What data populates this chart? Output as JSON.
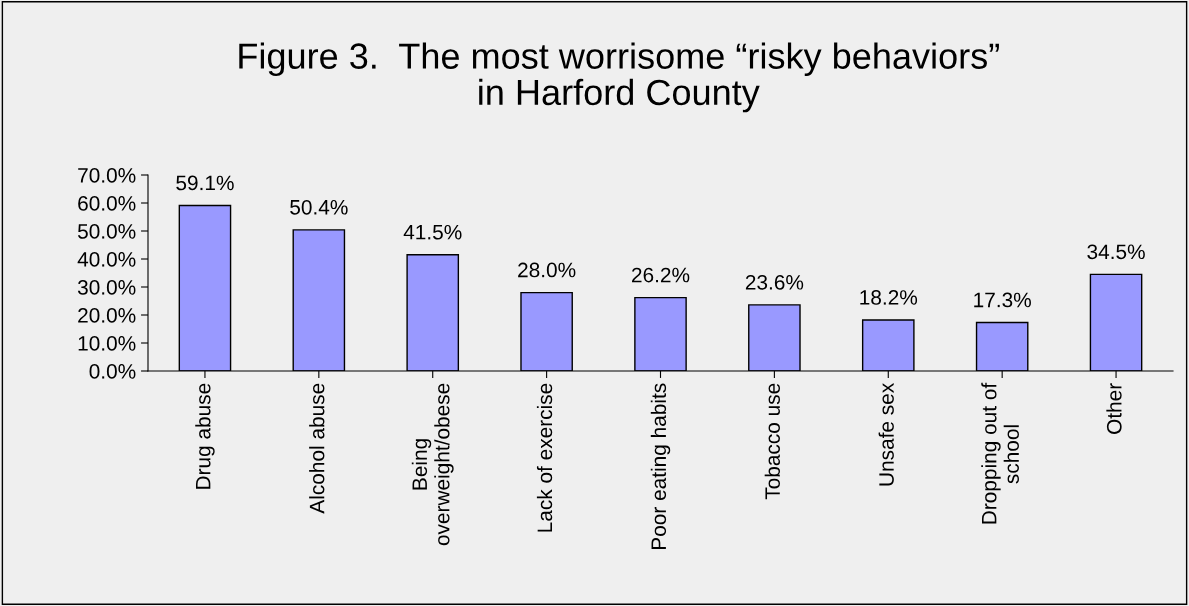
{
  "chart_data": {
    "type": "bar",
    "title": "Figure 3.  The most worrisome “risky behaviors”\nin Harford County",
    "categories": [
      "Drug abuse",
      "Alcohol abuse",
      "Being\noverweight/obese",
      "Lack of exercise",
      "Poor eating habits",
      "Tobacco use",
      "Unsafe sex",
      "Dropping out of\nschool",
      "Other"
    ],
    "values": [
      59.1,
      50.4,
      41.5,
      28.0,
      26.2,
      23.6,
      18.2,
      17.3,
      34.5
    ],
    "value_labels": [
      "59.1%",
      "50.4%",
      "41.5%",
      "28.0%",
      "26.2%",
      "23.6%",
      "18.2%",
      "17.3%",
      "34.5%"
    ],
    "color": "#9999ff",
    "ylim": [
      0,
      70
    ],
    "yticks": [
      {
        "value": 0,
        "label": "0.0%"
      },
      {
        "value": 10,
        "label": "10.0%"
      },
      {
        "value": 20,
        "label": "20.0%"
      },
      {
        "value": 30,
        "label": "30.0%"
      },
      {
        "value": 40,
        "label": "40.0%"
      },
      {
        "value": 50,
        "label": "50.0%"
      },
      {
        "value": 60,
        "label": "60.0%"
      },
      {
        "value": 70,
        "label": "70.0%"
      }
    ],
    "grid": false,
    "legend": false
  }
}
